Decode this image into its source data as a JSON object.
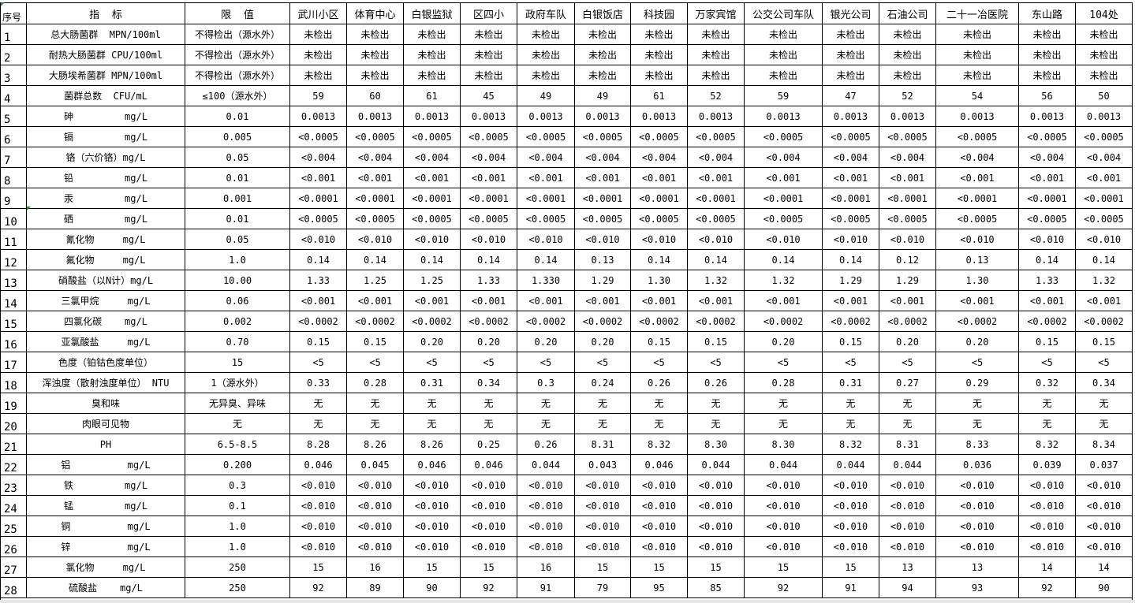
{
  "header": {
    "no": "序号",
    "indicator": "指  标",
    "limit": "限  值",
    "sites": [
      "武川小区",
      "体育中心",
      "白银监狱",
      "区四小",
      "政府车队",
      "白银饭店",
      "科技园",
      "万家宾馆",
      "公交公司车队",
      "银光公司",
      "石油公司",
      "二十一冶医院",
      "东山路",
      "104处"
    ]
  },
  "rows": [
    {
      "no": "1",
      "indicator": "总大肠菌群  MPN/100ml",
      "limit": "不得检出（源水外）",
      "values": [
        "未检出",
        "未检出",
        "未检出",
        "未检出",
        "未检出",
        "未检出",
        "未检出",
        "未检出",
        "未检出",
        "未检出",
        "未检出",
        "未检出",
        "未检出",
        "未检出"
      ]
    },
    {
      "no": "2",
      "indicator": "耐热大肠菌群 CPU/100ml",
      "limit": "不得检出（源水外）",
      "values": [
        "未检出",
        "未检出",
        "未检出",
        "未检出",
        "未检出",
        "未检出",
        "未检出",
        "未检出",
        "未检出",
        "未检出",
        "未检出",
        "未检出",
        "未检出",
        "未检出"
      ]
    },
    {
      "no": "3",
      "indicator": "大肠埃希菌群 MPN/100ml",
      "limit": "不得检出（源水外）",
      "values": [
        "未检出",
        "未检出",
        "未检出",
        "未检出",
        "未检出",
        "未检出",
        "未检出",
        "未检出",
        "未检出",
        "未检出",
        "未检出",
        "未检出",
        "未检出",
        "未检出"
      ]
    },
    {
      "no": "4",
      "indicator": "菌群总数  CFU/mL",
      "limit": "≤100（源水外）",
      "values": [
        "59",
        "60",
        "61",
        "45",
        "49",
        "49",
        "61",
        "52",
        "59",
        "47",
        "52",
        "54",
        "56",
        "50"
      ]
    },
    {
      "no": "5",
      "indicator": "砷         mg/L",
      "limit": "0.01",
      "values": [
        "0.0013",
        "0.0013",
        "0.0013",
        "0.0013",
        "0.0013",
        "0.0013",
        "0.0013",
        "0.0013",
        "0.0013",
        "0.0013",
        "0.0013",
        "0.0013",
        "0.0013",
        "0.0013"
      ]
    },
    {
      "no": "6",
      "indicator": "镉         mg/L",
      "limit": "0.005",
      "values": [
        "<0.0005",
        "<0.0005",
        "<0.0005",
        "<0.0005",
        "<0.0005",
        "<0.0005",
        "<0.0005",
        "<0.0005",
        "<0.0005",
        "<0.0005",
        "<0.0005",
        "<0.0005",
        "<0.0005",
        "<0.0005"
      ]
    },
    {
      "no": "7",
      "indicator": "铬（六价铬）mg/L",
      "limit": "0.05",
      "values": [
        "<0.004",
        "<0.004",
        "<0.004",
        "<0.004",
        "<0.004",
        "<0.004",
        "<0.004",
        "<0.004",
        "<0.004",
        "<0.004",
        "<0.004",
        "<0.004",
        "<0.004",
        "<0.004"
      ]
    },
    {
      "no": "8",
      "indicator": "铅         mg/L",
      "limit": "0.01",
      "values": [
        "<0.001",
        "<0.001",
        "<0.001",
        "<0.001",
        "<0.001",
        "<0.001",
        "<0.001",
        "<0.001",
        "<0.001",
        "<0.001",
        "<0.001",
        "<0.001",
        "<0.001",
        "<0.001"
      ]
    },
    {
      "no": "9",
      "indicator": "汞         mg/L",
      "limit": "0.001",
      "values": [
        "<0.0001",
        "<0.0001",
        "<0.0001",
        "<0.0001",
        "<0.0001",
        "<0.0001",
        "<0.0001",
        "<0.0001",
        "<0.0001",
        "<0.0001",
        "<0.0001",
        "<0.0001",
        "<0.0001",
        "<0.0001"
      ]
    },
    {
      "no": "10",
      "indicator": "硒         mg/L",
      "limit": "0.01",
      "values": [
        "<0.0005",
        "<0.0005",
        "<0.0005",
        "<0.0005",
        "<0.0005",
        "<0.0005",
        "<0.0005",
        "<0.0005",
        "<0.0005",
        "<0.0005",
        "<0.0005",
        "<0.0005",
        "<0.0005",
        "<0.0005"
      ]
    },
    {
      "no": "11",
      "indicator": "氰化物     mg/L",
      "limit": "0.05",
      "values": [
        "<0.010",
        "<0.010",
        "<0.010",
        "<0.010",
        "<0.010",
        "<0.010",
        "<0.010",
        "<0.010",
        "<0.010",
        "<0.010",
        "<0.010",
        "<0.010",
        "<0.010",
        "<0.010"
      ]
    },
    {
      "no": "12",
      "indicator": "氟化物     mg/L",
      "limit": "1.0",
      "values": [
        "0.14",
        "0.14",
        "0.14",
        "0.14",
        "0.14",
        "0.13",
        "0.14",
        "0.14",
        "0.14",
        "0.14",
        "0.12",
        "0.13",
        "0.14",
        "0.14"
      ]
    },
    {
      "no": "13",
      "indicator": "硝酸盐（以N计）mg/L",
      "limit": "10.00",
      "values": [
        "1.33",
        "1.25",
        "1.25",
        "1.33",
        "1.330",
        "1.29",
        "1.30",
        "1.32",
        "1.32",
        "1.29",
        "1.29",
        "1.30",
        "1.33",
        "1.32"
      ]
    },
    {
      "no": "14",
      "indicator": "三氯甲烷     mg/L",
      "limit": "0.06",
      "values": [
        "<0.001",
        "<0.001",
        "<0.001",
        "<0.001",
        "<0.001",
        "<0.001",
        "<0.001",
        "<0.001",
        "<0.001",
        "<0.001",
        "<0.001",
        "<0.001",
        "<0.001",
        "<0.001"
      ]
    },
    {
      "no": "15",
      "indicator": "四氯化碳    mg/L",
      "limit": "0.002",
      "values": [
        "<0.0002",
        "<0.0002",
        "<0.0002",
        "<0.0002",
        "<0.0002",
        "<0.0002",
        "<0.0002",
        "<0.0002",
        "<0.0002",
        "<0.0002",
        "<0.0002",
        "<0.0002",
        "<0.0002",
        "<0.0002"
      ]
    },
    {
      "no": "16",
      "indicator": "亚氯酸盐     mg/L",
      "limit": "0.70",
      "values": [
        "0.15",
        "0.15",
        "0.20",
        "0.20",
        "0.20",
        "0.20",
        "0.15",
        "0.15",
        "0.20",
        "0.15",
        "0.20",
        "0.20",
        "0.15",
        "0.15"
      ]
    },
    {
      "no": "17",
      "indicator": "色度（铂钴色度单位）",
      "limit": "15",
      "values": [
        "<5",
        "<5",
        "<5",
        "<5",
        "<5",
        "<5",
        "<5",
        "<5",
        "<5",
        "<5",
        "<5",
        "<5",
        "<5",
        "<5"
      ]
    },
    {
      "no": "18",
      "indicator": "浑浊度（散射浊度单位） NTU",
      "limit": "1（源水外）",
      "values": [
        "0.33",
        "0.28",
        "0.31",
        "0.34",
        "0.3",
        "0.24",
        "0.26",
        "0.26",
        "0.28",
        "0.31",
        "0.27",
        "0.29",
        "0.32",
        "0.34"
      ]
    },
    {
      "no": "19",
      "indicator": "臭和味",
      "limit": "无异臭、异味",
      "values": [
        "无",
        "无",
        "无",
        "无",
        "无",
        "无",
        "无",
        "无",
        "无",
        "无",
        "无",
        "无",
        "无",
        "无"
      ]
    },
    {
      "no": "20",
      "indicator": "肉眼可见物",
      "limit": "无",
      "values": [
        "无",
        "无",
        "无",
        "无",
        "无",
        "无",
        "无",
        "无",
        "无",
        "无",
        "无",
        "无",
        "无",
        "无"
      ]
    },
    {
      "no": "21",
      "indicator": "PH",
      "limit": "6.5-8.5",
      "values": [
        "8.28",
        "8.26",
        "8.26",
        "0.25",
        "0.26",
        "8.31",
        "8.32",
        "8.30",
        "8.30",
        "8.32",
        "8.31",
        "8.33",
        "8.32",
        "8.34"
      ]
    },
    {
      "no": "22",
      "indicator": "铝          mg/L",
      "limit": "0.200",
      "values": [
        "0.046",
        "0.045",
        "0.046",
        "0.046",
        "0.044",
        "0.043",
        "0.046",
        "0.044",
        "0.044",
        "0.044",
        "0.044",
        "0.036",
        "0.039",
        "0.037"
      ]
    },
    {
      "no": "23",
      "indicator": "铁         mg/L",
      "limit": "0.3",
      "values": [
        "<0.010",
        "<0.010",
        "<0.010",
        "<0.010",
        "<0.010",
        "<0.010",
        "<0.010",
        "<0.010",
        "<0.010",
        "<0.010",
        "<0.010",
        "<0.010",
        "<0.010",
        "<0.010"
      ]
    },
    {
      "no": "24",
      "indicator": "锰         mg/L",
      "limit": "0.1",
      "values": [
        "<0.010",
        "<0.010",
        "<0.010",
        "<0.010",
        "<0.010",
        "<0.010",
        "<0.010",
        "<0.010",
        "<0.010",
        "<0.010",
        "<0.010",
        "<0.010",
        "<0.010",
        "<0.010"
      ]
    },
    {
      "no": "25",
      "indicator": "铜          mg/L",
      "limit": "1.0",
      "values": [
        "<0.010",
        "<0.010",
        "<0.010",
        "<0.010",
        "<0.010",
        "<0.010",
        "<0.010",
        "<0.010",
        "<0.010",
        "<0.010",
        "<0.010",
        "<0.010",
        "<0.010",
        "<0.010"
      ]
    },
    {
      "no": "26",
      "indicator": "锌          mg/L",
      "limit": "1.0",
      "values": [
        "<0.010",
        "<0.010",
        "<0.010",
        "<0.010",
        "<0.010",
        "<0.010",
        "<0.010",
        "<0.010",
        "<0.010",
        "<0.010",
        "<0.010",
        "<0.010",
        "<0.010",
        "<0.010"
      ]
    },
    {
      "no": "27",
      "indicator": "氯化物     mg/L",
      "limit": "250",
      "values": [
        "15",
        "16",
        "15",
        "15",
        "16",
        "15",
        "15",
        "15",
        "15",
        "15",
        "13",
        "13",
        "14",
        "14"
      ]
    },
    {
      "no": "28",
      "indicator": "硫酸盐    mg/L",
      "limit": "250",
      "values": [
        "92",
        "89",
        "90",
        "92",
        "91",
        "79",
        "95",
        "85",
        "92",
        "91",
        "94",
        "93",
        "92",
        "90"
      ]
    }
  ]
}
